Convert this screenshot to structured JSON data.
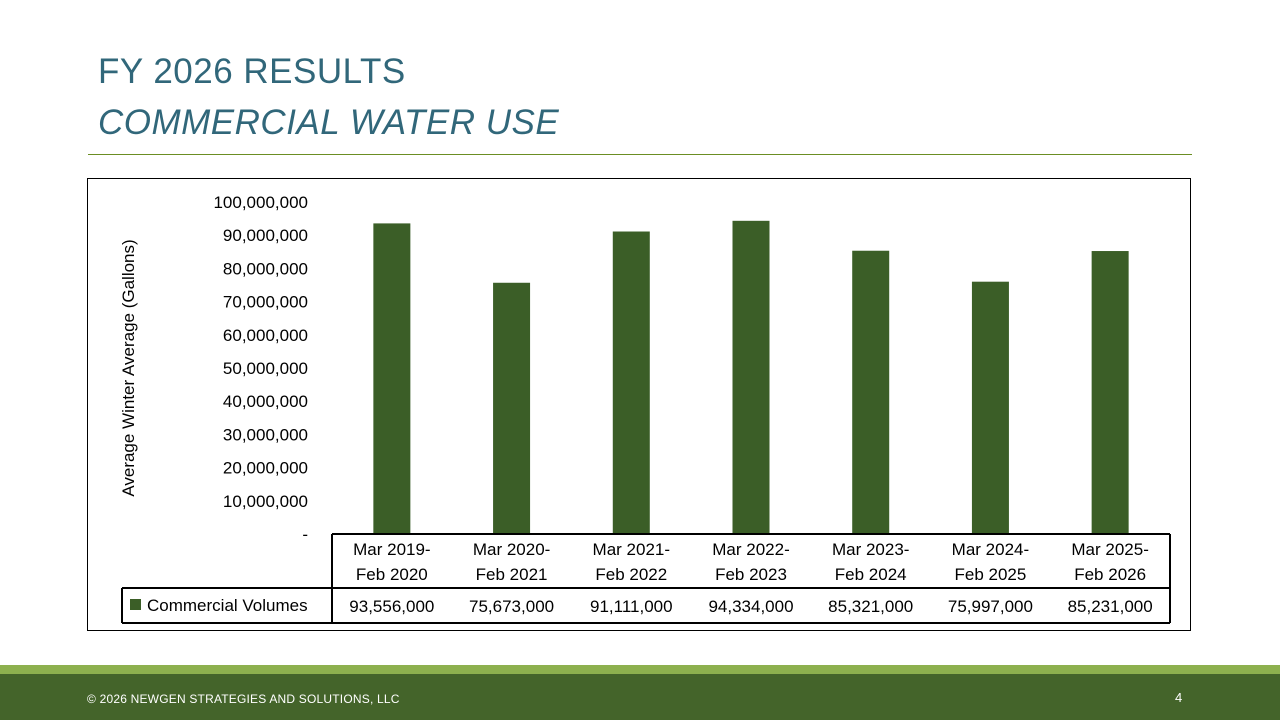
{
  "slide": {
    "title": "FY 2026 RESULTS",
    "subtitle": "COMMERCIAL WATER USE",
    "footer": "© 2026 NEWGEN STRATEGIES AND SOLUTIONS, LLC",
    "page_number": "4"
  },
  "colors": {
    "bar": "#3b5e27",
    "title": "#31677a",
    "footer_dark": "#44642a",
    "footer_light": "#8db04e",
    "rule": "#6b8e23"
  },
  "chart_data": {
    "type": "bar",
    "ylabel": "Average Winter Average (Gallons)",
    "ylim": [
      0,
      100000000
    ],
    "ytick_labels": [
      "-",
      "10,000,000",
      "20,000,000",
      "30,000,000",
      "40,000,000",
      "50,000,000",
      "60,000,000",
      "70,000,000",
      "80,000,000",
      "90,000,000",
      "100,000,000"
    ],
    "grid": false,
    "categories": [
      [
        "Mar 2019-",
        "Feb 2020"
      ],
      [
        "Mar 2020-",
        "Feb 2021"
      ],
      [
        "Mar 2021-",
        "Feb 2022"
      ],
      [
        "Mar 2022-",
        "Feb 2023"
      ],
      [
        "Mar 2023-",
        "Feb 2024"
      ],
      [
        "Mar 2024-",
        "Feb 2025"
      ],
      [
        "Mar 2025-",
        "Feb 2026"
      ]
    ],
    "series": [
      {
        "name": "Commercial Volumes",
        "values": [
          93556000,
          75673000,
          91111000,
          94334000,
          85321000,
          75997000,
          85231000
        ],
        "value_labels": [
          "93,556,000",
          "75,673,000",
          "91,111,000",
          "94,334,000",
          "85,321,000",
          "75,997,000",
          "85,231,000"
        ]
      }
    ],
    "data_table": true
  }
}
